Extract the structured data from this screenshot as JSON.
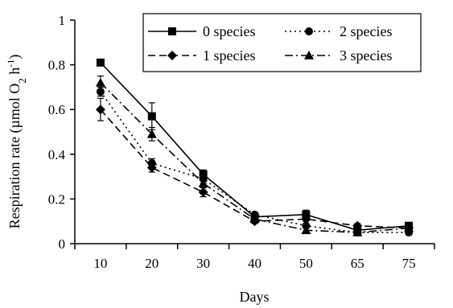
{
  "chart_data": {
    "type": "line",
    "categories": [
      "10",
      "20",
      "30",
      "40",
      "50",
      "65",
      "75"
    ],
    "xlabel": "Days",
    "ylabel": {
      "prefix": "Respiration rate (µmol O",
      "subscript": "2",
      "middle": " h",
      "superscript": "-1",
      "suffix": ")"
    },
    "ylim": [
      0,
      1
    ],
    "yticks": [
      "0",
      "0.2",
      "0.4",
      "0.6",
      "0.8",
      "1"
    ],
    "grid": false,
    "legend_position": "top-right",
    "series": [
      {
        "name": "0 species",
        "marker": "square",
        "dash": "solid",
        "values": [
          0.81,
          0.57,
          0.31,
          0.12,
          0.13,
          0.06,
          0.08
        ],
        "errors": [
          0.01,
          0.06,
          0.02,
          0.01,
          0.02,
          0.01,
          0.01
        ]
      },
      {
        "name": "2 species",
        "marker": "circle",
        "dash": "dotted",
        "values": [
          0.68,
          0.36,
          0.29,
          0.13,
          0.08,
          0.05,
          0.05
        ],
        "errors": [
          0.02,
          0.02,
          0.02,
          0.01,
          0.01,
          0.01,
          0.01
        ]
      },
      {
        "name": "1 species",
        "marker": "diamond",
        "dash": "dashed",
        "values": [
          0.6,
          0.34,
          0.23,
          0.1,
          0.11,
          0.08,
          0.07
        ],
        "errors": [
          0.05,
          0.02,
          0.02,
          0.01,
          0.01,
          0.01,
          0.01
        ]
      },
      {
        "name": "3 species",
        "marker": "triangle",
        "dash": "dashdot",
        "values": [
          0.72,
          0.49,
          0.27,
          0.11,
          0.06,
          0.05,
          0.07
        ],
        "errors": [
          0.03,
          0.03,
          0.02,
          0.01,
          0.01,
          0.01,
          0.01
        ]
      }
    ]
  }
}
